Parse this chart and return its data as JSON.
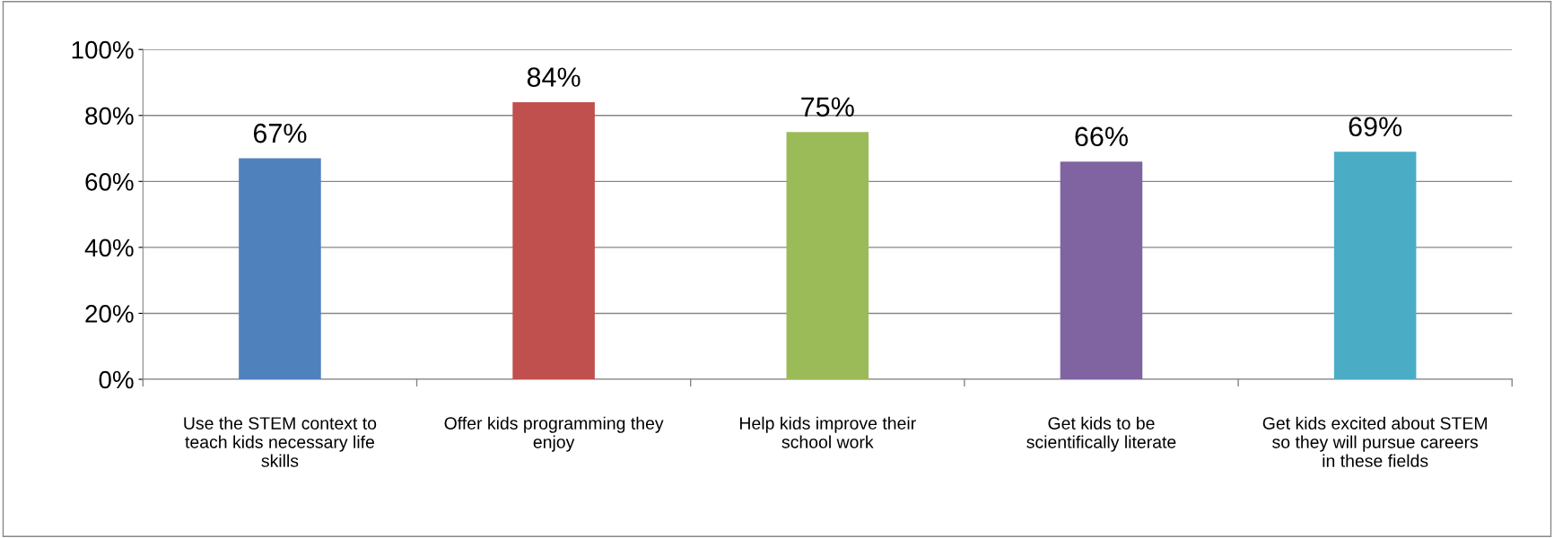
{
  "chart_data": {
    "type": "bar",
    "categories": [
      "Use the STEM context to teach kids necessary life skills",
      "Offer kids programming they enjoy",
      "Help kids improve their school work",
      "Get kids to be scientifically literate",
      "Get kids excited about STEM so they will pursue careers in these fields"
    ],
    "values": [
      67,
      84,
      75,
      66,
      69
    ],
    "colors": [
      "#4f81bd",
      "#c0504d",
      "#9bbb59",
      "#8064a2",
      "#4bacc6"
    ],
    "value_labels": [
      "67%",
      "84%",
      "75%",
      "66%",
      "69%"
    ],
    "ylim": [
      0,
      100
    ],
    "yticks": [
      {
        "value": 0,
        "label": "0%"
      },
      {
        "value": 20,
        "label": "20%"
      },
      {
        "value": 40,
        "label": "40%"
      },
      {
        "value": 60,
        "label": "60%"
      },
      {
        "value": 80,
        "label": "80%"
      },
      {
        "value": 100,
        "label": "100%"
      }
    ],
    "grid": "y",
    "legend": false
  }
}
